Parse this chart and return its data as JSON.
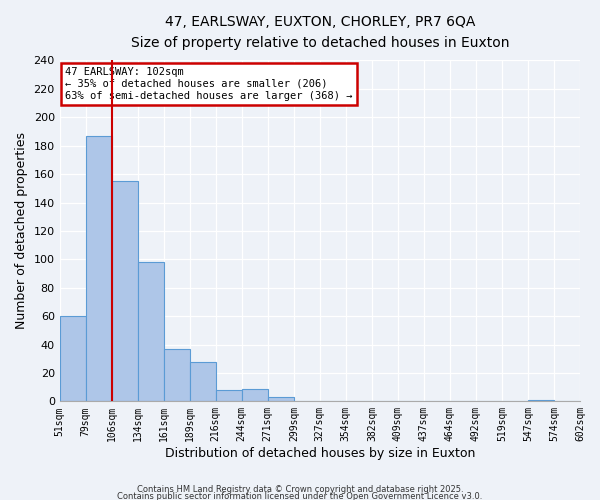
{
  "title": "47, EARLSWAY, EUXTON, CHORLEY, PR7 6QA",
  "subtitle": "Size of property relative to detached houses in Euxton",
  "xlabel": "Distribution of detached houses by size in Euxton",
  "ylabel": "Number of detached properties",
  "bar_values": [
    60,
    187,
    155,
    98,
    37,
    28,
    8,
    9,
    3,
    0,
    0,
    0,
    0,
    0,
    0,
    0,
    0,
    0,
    1,
    0
  ],
  "bin_labels": [
    "51sqm",
    "79sqm",
    "106sqm",
    "134sqm",
    "161sqm",
    "189sqm",
    "216sqm",
    "244sqm",
    "271sqm",
    "299sqm",
    "327sqm",
    "354sqm",
    "382sqm",
    "409sqm",
    "437sqm",
    "464sqm",
    "492sqm",
    "519sqm",
    "547sqm",
    "574sqm",
    "602sqm"
  ],
  "bar_color": "#aec6e8",
  "bar_edge_color": "#5b9bd5",
  "vline_x": 2.0,
  "vline_color": "#cc0000",
  "ylim": [
    0,
    240
  ],
  "yticks": [
    0,
    20,
    40,
    60,
    80,
    100,
    120,
    140,
    160,
    180,
    200,
    220,
    240
  ],
  "annotation_title": "47 EARLSWAY: 102sqm",
  "annotation_line1": "← 35% of detached houses are smaller (206)",
  "annotation_line2": "63% of semi-detached houses are larger (368) →",
  "footer1": "Contains HM Land Registry data © Crown copyright and database right 2025.",
  "footer2": "Contains public sector information licensed under the Open Government Licence v3.0.",
  "background_color": "#eef2f8",
  "grid_color": "#ffffff",
  "annotation_box_color": "#ffffff"
}
